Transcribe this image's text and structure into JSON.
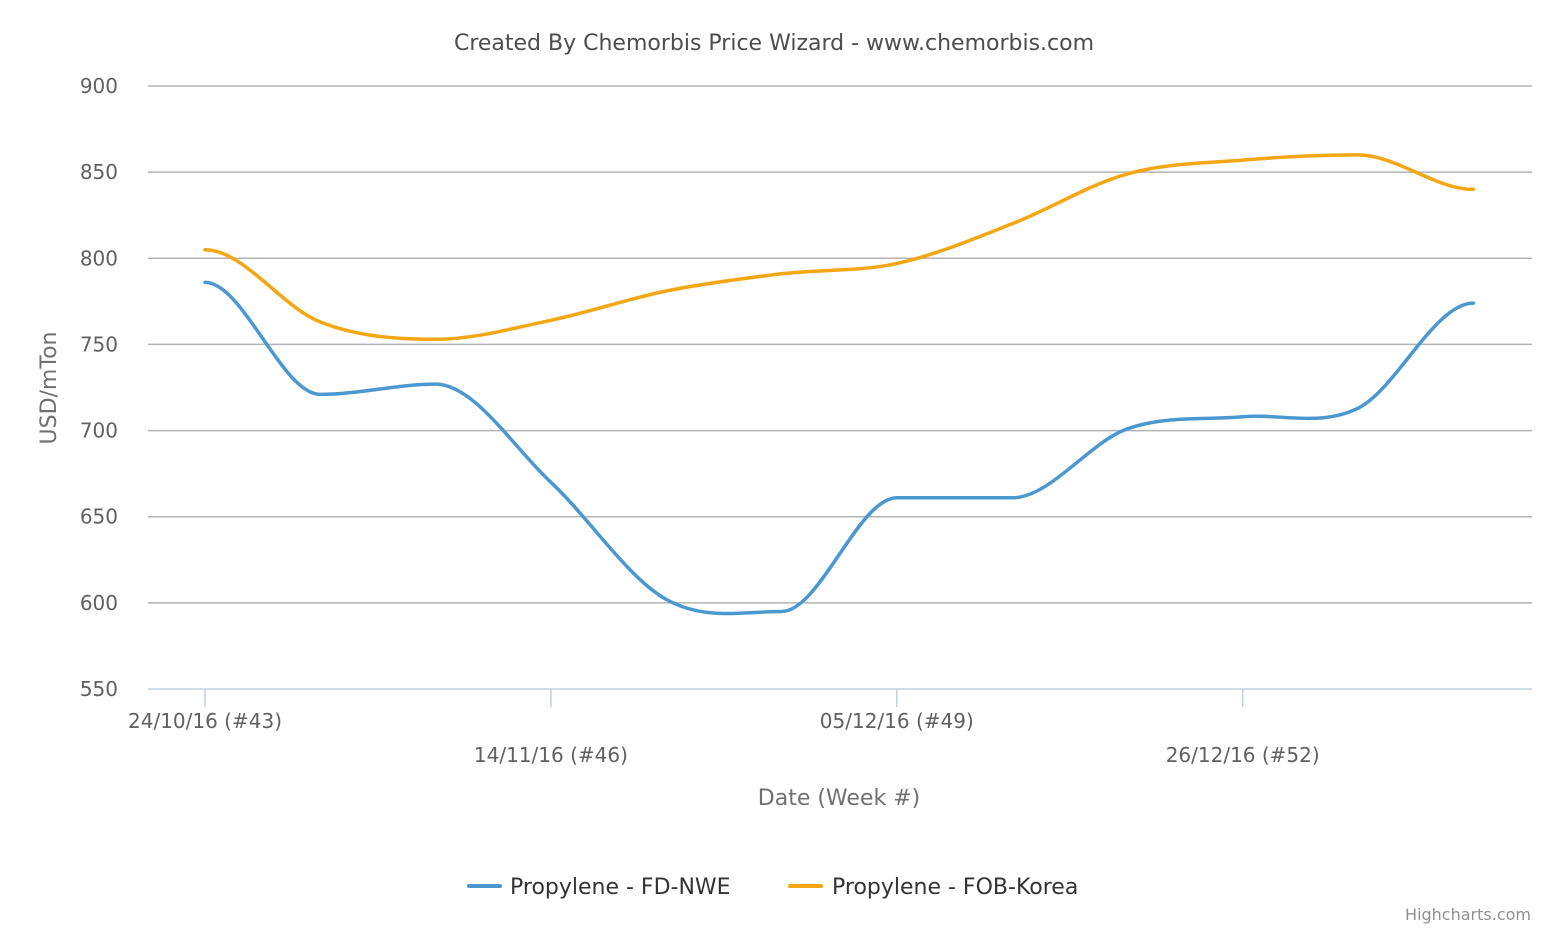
{
  "chart_data": {
    "type": "line",
    "title": "Created By Chemorbis Price Wizard - www.chemorbis.com",
    "xlabel": "Date (Week #)",
    "ylabel": "USD/mTon",
    "ylim": [
      550,
      900
    ],
    "yticks": [
      "900",
      "850",
      "800",
      "750",
      "700",
      "650",
      "600",
      "550"
    ],
    "grid": true,
    "legend_position": "bottom-center",
    "x": [
      "24/10/16",
      "31/10/16",
      "07/11/16",
      "14/11/16",
      "21/11/16",
      "28/11/16",
      "05/12/16",
      "12/12/16",
      "19/12/16",
      "26/12/16",
      "02/01/17",
      "09/01/17"
    ],
    "xtick_labels": [
      {
        "index": 0,
        "label": "24/10/16 (#43)"
      },
      {
        "index": 3,
        "label": "14/11/16 (#46)"
      },
      {
        "index": 6,
        "label": "05/12/16 (#49)"
      },
      {
        "index": 9,
        "label": "26/12/16 (#52)"
      }
    ],
    "series": [
      {
        "name": "Propylene - FD-NWE",
        "color": "#4a98cf",
        "values": [
          786,
          721,
          727,
          670,
          602,
          595,
          661,
          661,
          701,
          708,
          713,
          774
        ]
      },
      {
        "name": "Propylene - FOB-Korea",
        "color": "#f5a613",
        "values": [
          805,
          763,
          753,
          764,
          781,
          791,
          797,
          820,
          849,
          857,
          860,
          840
        ]
      }
    ]
  },
  "credits": "Highcharts.com"
}
